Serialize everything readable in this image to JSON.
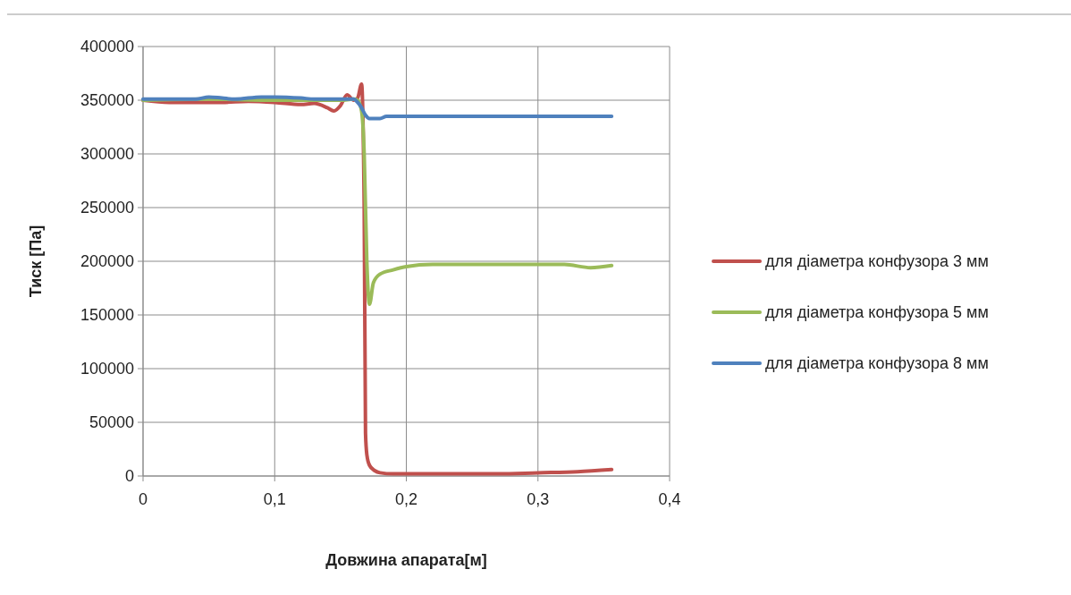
{
  "chart_data": {
    "type": "line",
    "xlabel": "Довжина апарата[м]",
    "ylabel": "Тиск  [Па]",
    "xlim": [
      0,
      0.4
    ],
    "xticks": [
      {
        "value": 0,
        "label": "0"
      },
      {
        "value": 0.1,
        "label": "0,1"
      },
      {
        "value": 0.2,
        "label": "0,2"
      },
      {
        "value": 0.3,
        "label": "0,3"
      },
      {
        "value": 0.4,
        "label": "0,4"
      }
    ],
    "ylim": [
      0,
      400000
    ],
    "yticks": [
      0,
      50000,
      100000,
      150000,
      200000,
      250000,
      300000,
      350000,
      400000
    ],
    "grid": true,
    "legend": "right",
    "marker": "none",
    "line_style": "solid",
    "series": [
      {
        "name": "для діаметра конфузора  3 мм",
        "color": "#c0504d",
        "x": [
          0,
          0.02,
          0.04,
          0.06,
          0.08,
          0.1,
          0.12,
          0.13,
          0.14,
          0.145,
          0.15,
          0.155,
          0.16,
          0.163,
          0.166,
          0.168,
          0.169,
          0.17,
          0.172,
          0.176,
          0.18,
          0.19,
          0.22,
          0.27,
          0.3,
          0.33,
          0.356
        ],
        "values": [
          350000,
          348000,
          348000,
          348000,
          349000,
          348000,
          346000,
          347000,
          343000,
          340000,
          345000,
          355000,
          350000,
          352000,
          365000,
          250000,
          40000,
          20000,
          10000,
          5000,
          3000,
          2000,
          2000,
          2000,
          3000,
          4000,
          6000
        ]
      },
      {
        "name": "для діаметра конфузора  5 мм",
        "color": "#9bbb59",
        "x": [
          0,
          0.05,
          0.1,
          0.15,
          0.16,
          0.163,
          0.166,
          0.168,
          0.17,
          0.172,
          0.175,
          0.18,
          0.19,
          0.2,
          0.22,
          0.3,
          0.32,
          0.34,
          0.356
        ],
        "values": [
          350000,
          351000,
          350000,
          350000,
          351000,
          350000,
          340000,
          300000,
          200000,
          160000,
          180000,
          188000,
          192000,
          195000,
          197000,
          197000,
          197000,
          194000,
          196000
        ]
      },
      {
        "name": "для діаметра конфузора  8 мм",
        "color": "#4f81bd",
        "x": [
          0,
          0.04,
          0.05,
          0.06,
          0.07,
          0.09,
          0.1,
          0.12,
          0.13,
          0.16,
          0.163,
          0.166,
          0.169,
          0.172,
          0.18,
          0.185,
          0.25,
          0.356
        ],
        "values": [
          351000,
          351000,
          353000,
          352000,
          351000,
          353000,
          353000,
          352000,
          351000,
          351000,
          348000,
          343000,
          336000,
          333000,
          333000,
          335000,
          335000,
          335000
        ]
      }
    ]
  }
}
